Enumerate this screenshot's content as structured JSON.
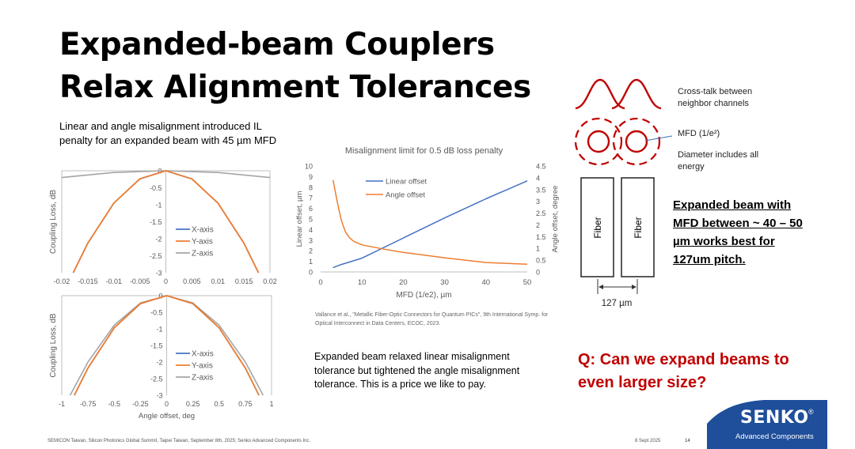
{
  "slide": {
    "title_line1": "Expanded-beam Couplers",
    "title_line2": "Relax Alignment Tolerances",
    "subtitle": "Linear and angle misalignment introduced IL penalty for an expanded beam with 45 µm MFD",
    "citation": "Vallance et al., \"Metallic Fiber-Optic Connectors for Quantum PICs\", 9th International Symp. for Optical Interconnect in Data Centers, ECOC, 2023.",
    "note": "Expanded beam relaxed linear misalignment tolerance but tightened the angle misalignment tolerance. This is a price we like to pay.",
    "highlight": "Expanded beam with MFD between ~ 40 – 50 µm works best for 127um pitch.",
    "question": "Q: Can we expand beams to even larger size?",
    "footer_left": "SEMICON Taiwan, Silicon Photonics Global Summit, Taipei Taiwan, September 8th, 2025; Senko Advanced Components Inc.",
    "footer_date": "8 Sept 2025",
    "page_number": "14"
  },
  "diagram": {
    "crosstalk_label": "Cross-talk between neighbor channels",
    "mfd_label": "MFD (1/e²)",
    "diameter_label": "Diameter includes all energy",
    "fiber1_label": "Fiber",
    "fiber2_label": "Fiber",
    "pitch_label": "127 µm",
    "accent_color": "#c00000"
  },
  "logo": {
    "name": "SENKO",
    "mark": "®",
    "tagline": "Advanced Components",
    "color": "#1f4e9a"
  },
  "chart_data": [
    {
      "type": "line",
      "ylabel": "Coupling Loss, dB",
      "ylim": [
        -3,
        0
      ],
      "yticks": [
        0,
        -0.5,
        -1,
        -1.5,
        -2,
        -2.5,
        -3
      ],
      "ytick_labels": [
        "0",
        "-0.5",
        "-1",
        "-1.5",
        "-2",
        "-2.5",
        "-3"
      ],
      "xlim": [
        -0.02,
        0.02
      ],
      "xticks": [
        -0.02,
        -0.015,
        -0.01,
        -0.005,
        0,
        0.005,
        0.01,
        0.015,
        0.02
      ],
      "xtick_labels": [
        "-0.02",
        "-0.015",
        "-0.01",
        "-0.005",
        "0",
        "0.005",
        "0.01",
        "0.015",
        "0.02"
      ],
      "legend": "center-right",
      "series": [
        {
          "name": "X-axis",
          "color": "#4472c4",
          "x": [
            -0.0178,
            -0.015,
            -0.01,
            -0.005,
            0,
            0.005,
            0.01,
            0.015,
            0.0178
          ],
          "y": [
            -3,
            -2.13,
            -0.95,
            -0.24,
            0,
            -0.24,
            -0.95,
            -2.13,
            -3
          ]
        },
        {
          "name": "Y-axis",
          "color": "#ed7d31",
          "x": [
            -0.0178,
            -0.015,
            -0.01,
            -0.005,
            0,
            0.005,
            0.01,
            0.015,
            0.0178
          ],
          "y": [
            -3,
            -2.13,
            -0.95,
            -0.24,
            0,
            -0.24,
            -0.95,
            -2.13,
            -3
          ]
        },
        {
          "name": "Z-axis",
          "color": "#a5a5a5",
          "x": [
            -0.02,
            -0.01,
            0,
            0.01,
            0.02
          ],
          "y": [
            -0.2,
            -0.05,
            0,
            -0.05,
            -0.2
          ]
        }
      ]
    },
    {
      "type": "line",
      "ylabel": "Coupling Loss, dB",
      "xlabel": "Angle offset, deg",
      "ylim": [
        -3,
        0
      ],
      "yticks": [
        0,
        -0.5,
        -1,
        -1.5,
        -2,
        -2.5,
        -3
      ],
      "ytick_labels": [
        "0",
        "-0.5",
        "-1",
        "-1.5",
        "-2",
        "-2.5",
        "-3"
      ],
      "xlim": [
        -1,
        1
      ],
      "xticks": [
        -1,
        -0.75,
        -0.5,
        -0.25,
        0,
        0.25,
        0.5,
        0.75,
        1
      ],
      "xtick_labels": [
        "-1",
        "-0.75",
        "-0.5",
        "-0.25",
        "0",
        "0.25",
        "0.5",
        "0.75",
        "1"
      ],
      "legend": "center-right",
      "series": [
        {
          "name": "X-axis",
          "color": "#4472c4",
          "x": [
            -0.88,
            -0.75,
            -0.5,
            -0.25,
            0,
            0.25,
            0.5,
            0.75,
            0.88
          ],
          "y": [
            -3,
            -2.18,
            -0.97,
            -0.24,
            0,
            -0.24,
            -0.97,
            -2.18,
            -3
          ]
        },
        {
          "name": "Y-axis",
          "color": "#ed7d31",
          "x": [
            -0.88,
            -0.75,
            -0.5,
            -0.25,
            0,
            0.25,
            0.5,
            0.75,
            0.88
          ],
          "y": [
            -3,
            -2.18,
            -0.97,
            -0.24,
            0,
            -0.24,
            -0.97,
            -2.18,
            -3
          ]
        },
        {
          "name": "Z-axis",
          "color": "#a5a5a5",
          "x": [
            -0.92,
            -0.75,
            -0.5,
            -0.25,
            0,
            0.25,
            0.5,
            0.75,
            0.92
          ],
          "y": [
            -3,
            -2.0,
            -0.89,
            -0.22,
            0,
            -0.22,
            -0.89,
            -2.0,
            -3
          ]
        }
      ]
    },
    {
      "type": "line",
      "title": "Misalignment limit for 0.5 dB loss penalty",
      "xlabel": "MFD (1/e2), µm",
      "ylabel": "Linear offset, µm",
      "y2label": "Angle offset, degree",
      "xlim": [
        0,
        50
      ],
      "xticks": [
        0,
        10,
        20,
        30,
        40,
        50
      ],
      "xtick_labels": [
        "0",
        "10",
        "20",
        "30",
        "40",
        "50"
      ],
      "ylim": [
        0,
        10
      ],
      "yticks": [
        0,
        1,
        2,
        3,
        4,
        5,
        6,
        7,
        8,
        9,
        10
      ],
      "ytick_labels": [
        "0",
        "1",
        "2",
        "3",
        "4",
        "5",
        "6",
        "7",
        "8",
        "9",
        "10"
      ],
      "y2lim": [
        0,
        4.5
      ],
      "y2ticks": [
        0,
        0.5,
        1,
        1.5,
        2,
        2.5,
        3,
        3.5,
        4,
        4.5
      ],
      "y2tick_labels": [
        "0",
        "0.5",
        "1",
        "1.5",
        "2",
        "2.5",
        "3",
        "3.5",
        "4",
        "4.5"
      ],
      "legend": "top-left",
      "series": [
        {
          "name": "Linear offset",
          "axis": "left",
          "color": "#4472c4",
          "x": [
            3,
            5,
            10,
            20,
            30,
            40,
            50
          ],
          "y": [
            0.4,
            0.7,
            1.3,
            3.2,
            5.1,
            6.9,
            8.6
          ]
        },
        {
          "name": "Angle offset",
          "axis": "right",
          "color": "#ed7d31",
          "x": [
            3,
            4,
            5,
            6,
            7,
            8,
            10,
            15,
            20,
            30,
            40,
            50
          ],
          "y": [
            3.9,
            3.0,
            2.2,
            1.7,
            1.45,
            1.3,
            1.15,
            0.98,
            0.83,
            0.6,
            0.4,
            0.33
          ]
        }
      ]
    }
  ]
}
